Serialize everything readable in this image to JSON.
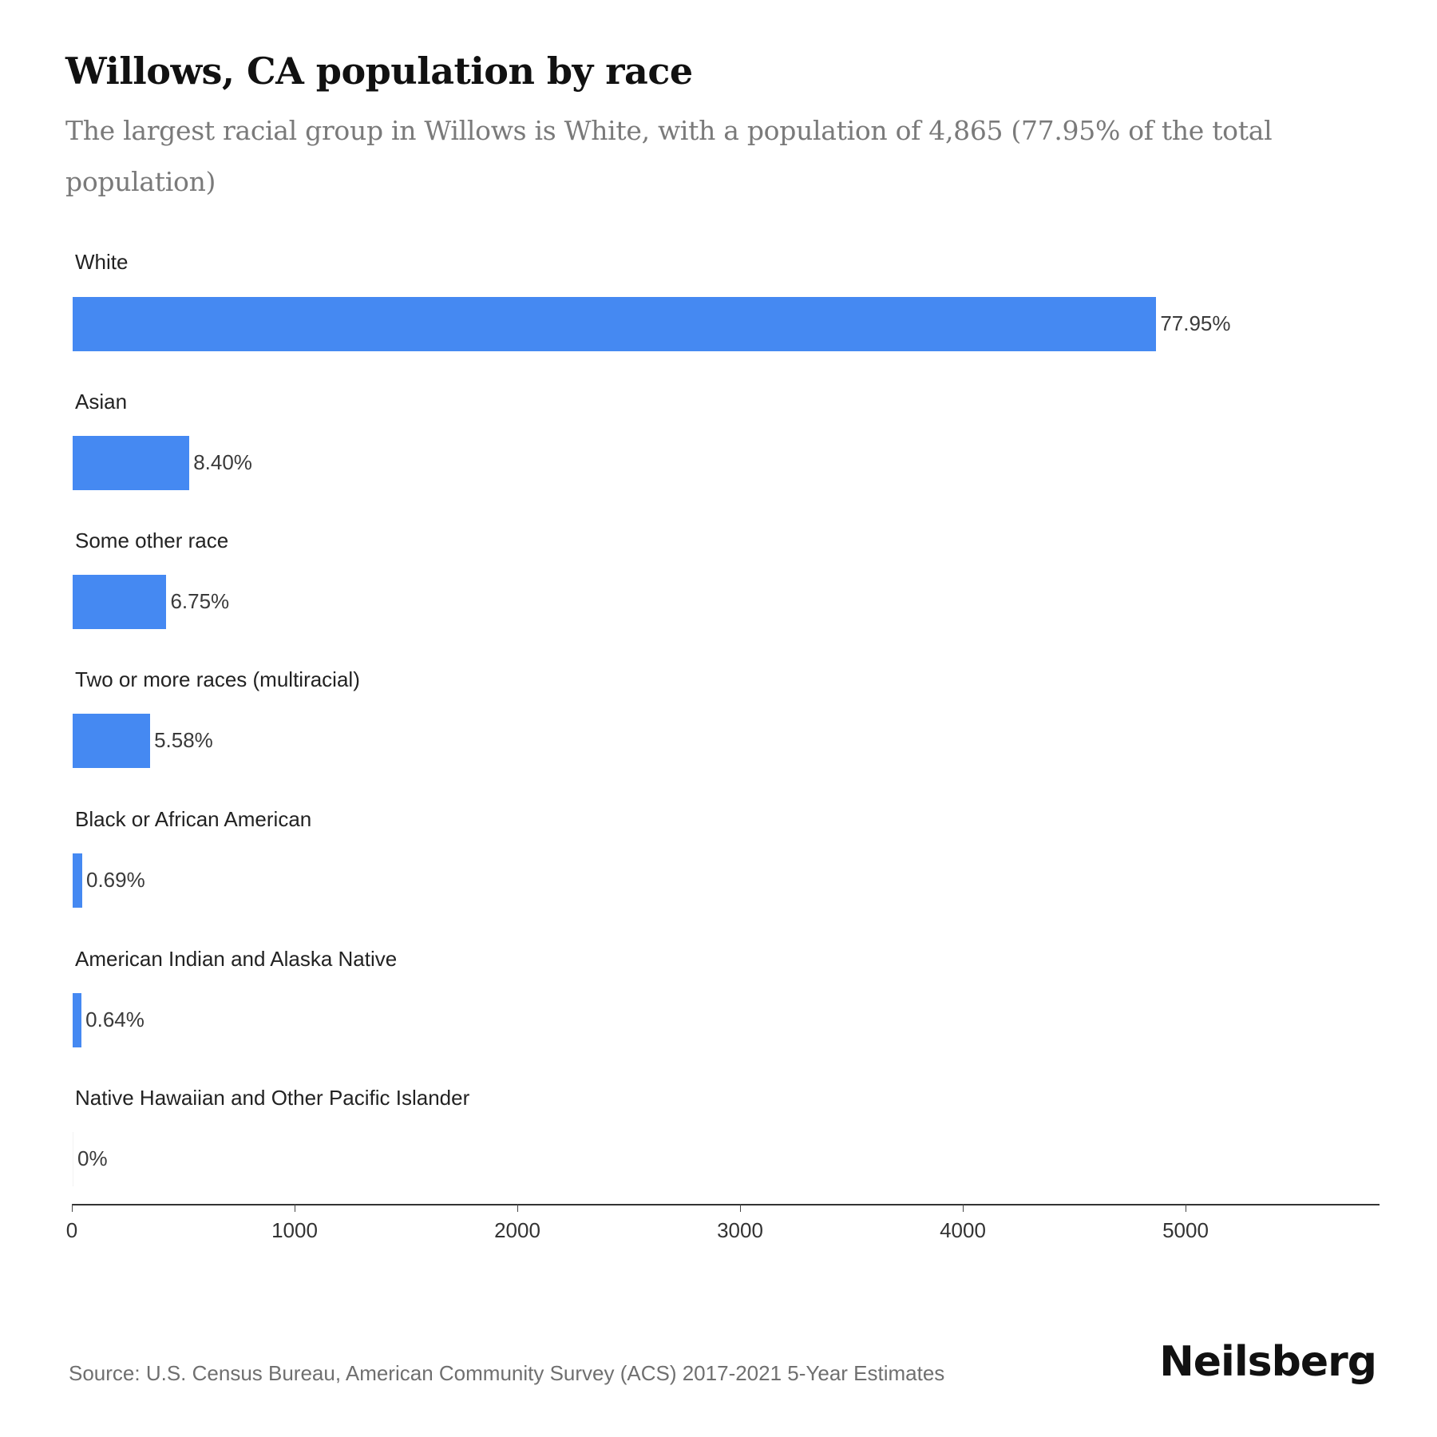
{
  "header": {
    "title": "Willows, CA population by race",
    "subtitle": "The largest racial group in Willows is White, with a population of 4,865 (77.95% of the total population)"
  },
  "chart_data": {
    "type": "bar",
    "orientation": "horizontal",
    "title": "Willows, CA population by race",
    "subtitle": "The largest racial group in Willows is White, with a population of 4,865 (77.95% of the total population)",
    "xlabel": "",
    "ylabel": "",
    "categories": [
      "White",
      "Asian",
      "Some other race",
      "Two or more races (multiracial)",
      "Black or African American",
      "American Indian and Alaska Native",
      "Native Hawaiian and Other Pacific Islander"
    ],
    "values": [
      4865,
      524,
      421,
      348,
      43,
      40,
      0
    ],
    "data_labels": [
      "77.95%",
      "8.40%",
      "6.75%",
      "5.58%",
      "0.69%",
      "0.64%",
      "0%"
    ],
    "percentages": [
      77.95,
      8.4,
      6.75,
      5.58,
      0.69,
      0.64,
      0
    ],
    "xlim": [
      0,
      5830
    ],
    "xticks": [
      0,
      1000,
      2000,
      3000,
      4000,
      5000
    ],
    "grid": false,
    "legend": "none",
    "bar_color": "#4589f2"
  },
  "rows": [
    {
      "label": "White",
      "value": 4865,
      "pct_label": "77.95%"
    },
    {
      "label": "Asian",
      "value": 524,
      "pct_label": "8.40%"
    },
    {
      "label": "Some other race",
      "value": 421,
      "pct_label": "6.75%"
    },
    {
      "label": "Two or more races (multiracial)",
      "value": 348,
      "pct_label": "5.58%"
    },
    {
      "label": "Black or African American",
      "value": 43,
      "pct_label": "0.69%"
    },
    {
      "label": "American Indian and Alaska Native",
      "value": 40,
      "pct_label": "0.64%"
    },
    {
      "label": "Native Hawaiian and Other Pacific Islander",
      "value": 0,
      "pct_label": "0%"
    }
  ],
  "axis": {
    "ticks": [
      "0",
      "1000",
      "2000",
      "3000",
      "4000",
      "5000"
    ]
  },
  "footer": {
    "source": "Source: U.S. Census Bureau, American Community Survey (ACS) 2017-2021 5-Year Estimates",
    "brand": "Neilsberg"
  },
  "colors": {
    "bar": "#4589f2",
    "title": "#111111",
    "subtitle": "#7a7a7a"
  }
}
